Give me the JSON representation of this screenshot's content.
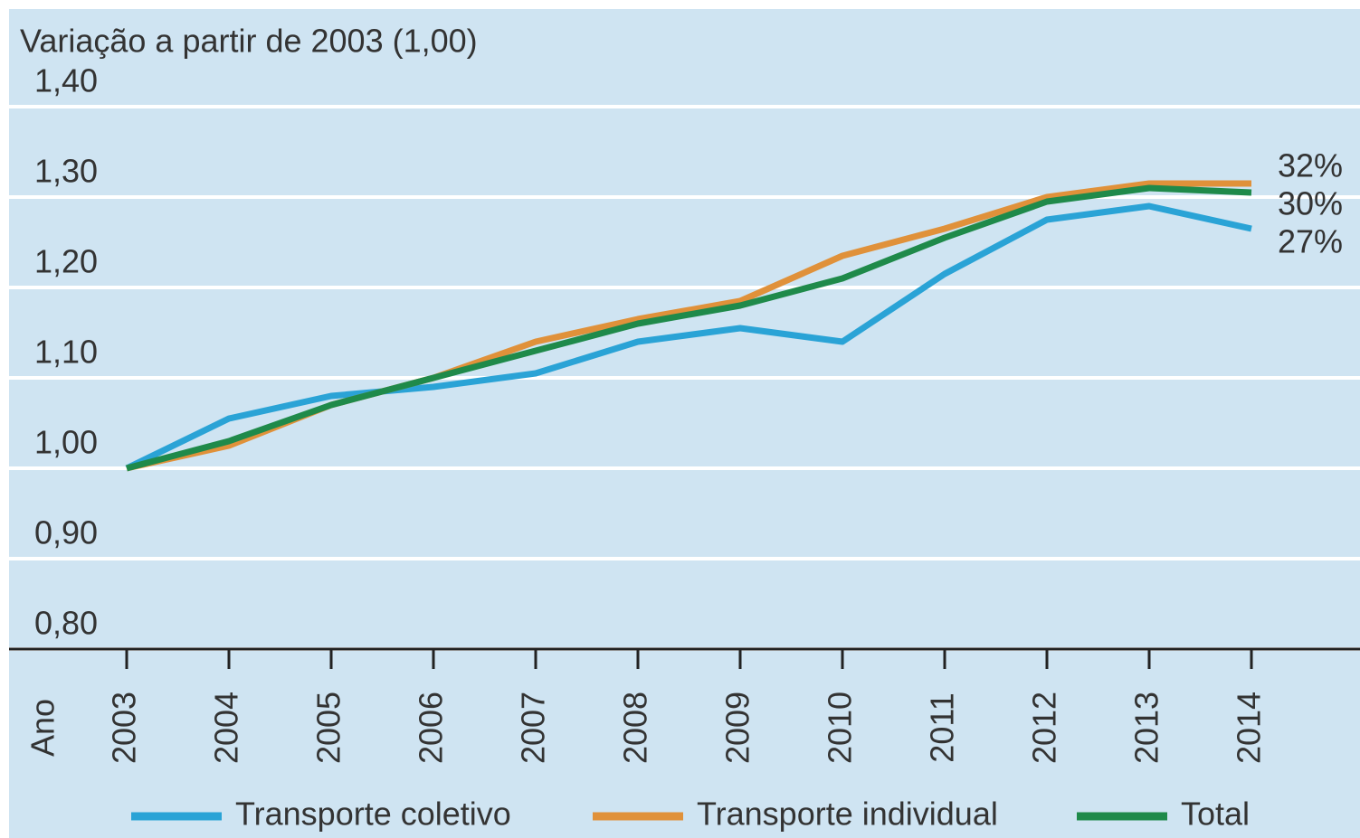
{
  "chart_data": {
    "type": "line",
    "y_label": "Variação a partir de 2003 (1,00)",
    "x_label": "Ano",
    "categories": [
      "2003",
      "2004",
      "2005",
      "2006",
      "2007",
      "2008",
      "2009",
      "2010",
      "2011",
      "2012",
      "2013",
      "2014"
    ],
    "series": [
      {
        "name": "Transporte coletivo",
        "color": "#2aa3d6",
        "values": [
          1.0,
          1.055,
          1.08,
          1.09,
          1.105,
          1.14,
          1.155,
          1.14,
          1.215,
          1.275,
          1.29,
          1.265
        ]
      },
      {
        "name": "Transporte individual",
        "color": "#e0913a",
        "values": [
          1.0,
          1.025,
          1.07,
          1.1,
          1.14,
          1.165,
          1.185,
          1.235,
          1.265,
          1.3,
          1.315,
          1.315
        ]
      },
      {
        "name": "Total",
        "color": "#1f8a4a",
        "values": [
          1.0,
          1.03,
          1.07,
          1.1,
          1.13,
          1.16,
          1.18,
          1.21,
          1.255,
          1.295,
          1.31,
          1.305
        ]
      }
    ],
    "annotations": [
      "32%",
      "30%",
      "27%"
    ],
    "ylim": [
      0.8,
      1.4
    ],
    "yticks": [
      {
        "value": 0.8,
        "label": "0,80"
      },
      {
        "value": 0.9,
        "label": "0,90"
      },
      {
        "value": 1.0,
        "label": "1,00"
      },
      {
        "value": 1.1,
        "label": "1,10"
      },
      {
        "value": 1.2,
        "label": "1,20"
      },
      {
        "value": 1.3,
        "label": "1,30"
      },
      {
        "value": 1.4,
        "label": "1,40"
      }
    ],
    "grid": true
  }
}
